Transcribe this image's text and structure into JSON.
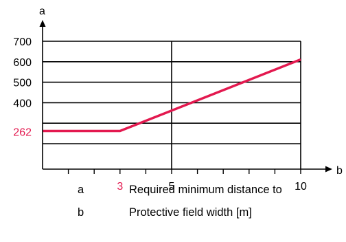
{
  "chart_data": {
    "type": "line",
    "title": "",
    "x_axis": {
      "label": "b",
      "range": [
        0,
        10
      ],
      "ticks": [
        {
          "value": 3,
          "label": "3",
          "highlight": true
        },
        {
          "value": 5,
          "label": "5",
          "highlight": false
        },
        {
          "value": 10,
          "label": "10",
          "highlight": false
        }
      ],
      "minor_ticks": [
        1,
        2,
        4,
        6,
        7,
        8,
        9
      ]
    },
    "y_axis": {
      "label": "a",
      "range": [
        0,
        700
      ],
      "ticks": [
        {
          "value": 262,
          "label": "262",
          "highlight": true
        },
        {
          "value": 400,
          "label": "400",
          "highlight": false
        },
        {
          "value": 500,
          "label": "500",
          "highlight": false
        },
        {
          "value": 600,
          "label": "600",
          "highlight": false
        },
        {
          "value": 700,
          "label": "700",
          "highlight": false
        }
      ],
      "gridlines": [
        200,
        300,
        400,
        500,
        600,
        700
      ]
    },
    "grid": true,
    "vertical_gridlines": [
      5,
      10
    ],
    "series": [
      {
        "color": "#e3194f",
        "x": [
          0,
          3,
          10
        ],
        "y": [
          262,
          262,
          611
        ]
      }
    ],
    "highlight_color": "#e3194f"
  },
  "legend": [
    {
      "key": "a",
      "text": "Required minimum distance to"
    },
    {
      "key": "b",
      "text": "Protective field width [m]"
    }
  ]
}
